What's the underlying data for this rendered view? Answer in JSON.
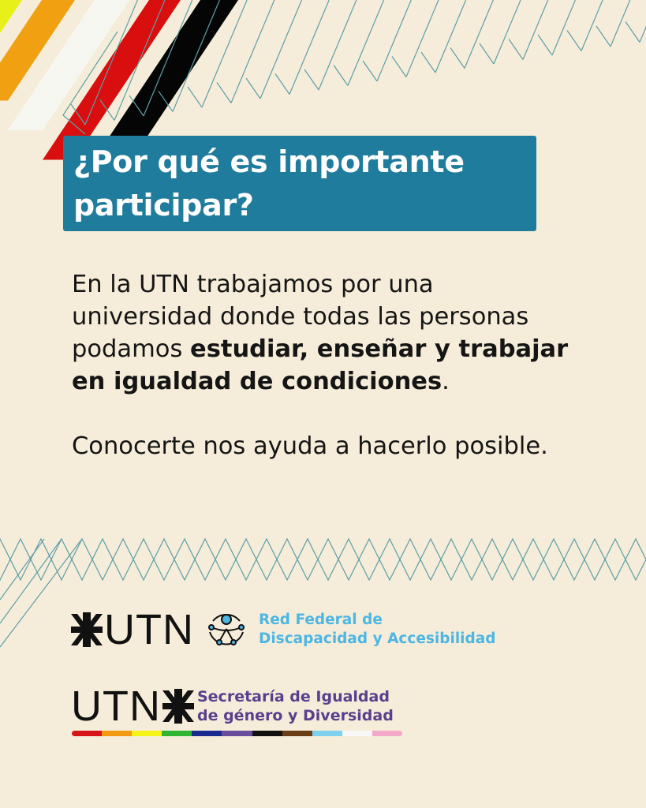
{
  "title": {
    "line1": "¿Por qué es importante",
    "line2": "participar?"
  },
  "body": {
    "p1_a": "En la UTN trabajamos por una universidad donde todas las personas podamos ",
    "p1_bold": "estudiar, enseñar y trabajar en igualdad de condiciones",
    "p1_end": ".",
    "p2": "Conocerte nos ayuda a hacerlo posible."
  },
  "logos": {
    "utn_text": "UTN",
    "red_federal_line1": "Red Federal de",
    "red_federal_line2": "Discapacidad y Accesibilidad",
    "secretaria_line1": "Secretaría de Igualdad",
    "secretaria_line2": "de género y Diversidad"
  },
  "colors": {
    "background": "#f5edd9",
    "title_box": "#1f7c9c",
    "line_pattern": "#5f9ea8",
    "red_federal": "#4db6e3",
    "secretaria": "#5a3f8e",
    "rainbow": [
      "#d7141a",
      "#f19a10",
      "#f5f21a",
      "#2fb52f",
      "#1a2a8f",
      "#6a4c9c",
      "#111111",
      "#6b3f16",
      "#7fd0ee",
      "#f7f7f7",
      "#f4a8c8"
    ],
    "corner_stripes": [
      "#e8f01a",
      "#f0a010",
      "#f7f7f2",
      "#d90e0e",
      "#050505"
    ]
  }
}
